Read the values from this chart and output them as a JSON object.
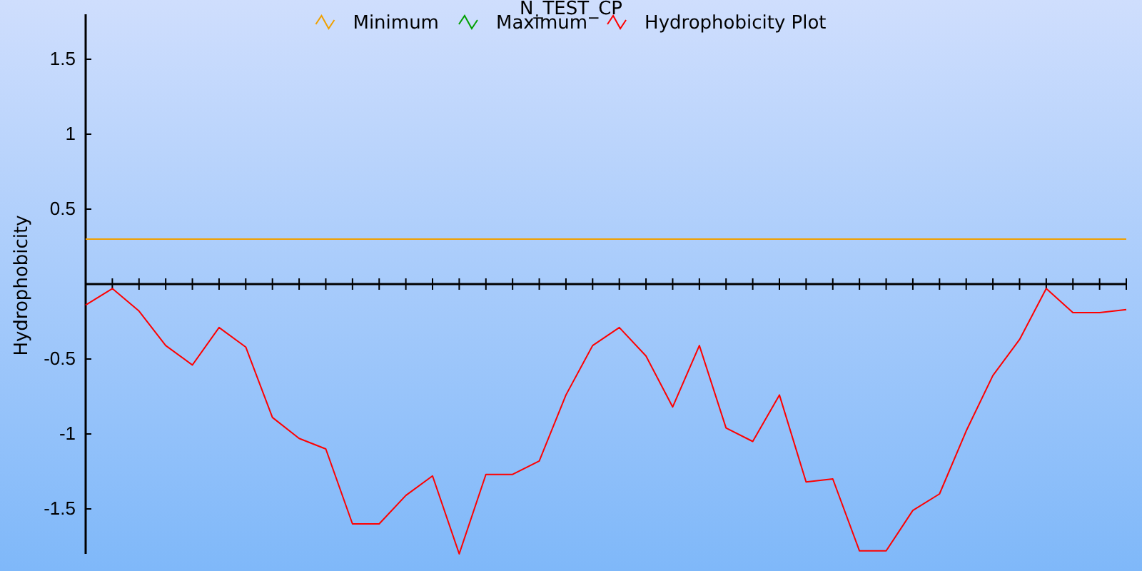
{
  "chart_data": {
    "type": "line",
    "title": "N_TEST_CP",
    "ylabel": "Hydrophobicity",
    "categories": [
      null,
      null,
      null,
      null,
      null,
      null,
      null,
      null,
      null,
      null,
      null,
      null,
      null,
      null,
      null,
      null,
      null,
      null,
      null,
      null,
      null,
      null,
      null,
      null,
      null,
      null,
      null,
      null,
      null,
      null,
      null,
      null,
      null,
      null,
      null,
      null,
      null,
      null,
      null,
      null
    ],
    "ylim": [
      -1.8,
      1.8
    ],
    "yticks": [
      -1.5,
      -1,
      -0.5,
      0.5,
      1,
      1.5
    ],
    "grid": false,
    "legend": "top",
    "marker": "none",
    "line_style": "solid",
    "series": [
      {
        "name": "Minimum",
        "color": "#f0a000",
        "values": [
          0.3,
          0.3,
          0.3,
          0.3,
          0.3,
          0.3,
          0.3,
          0.3,
          0.3,
          0.3,
          0.3,
          0.3,
          0.3,
          0.3,
          0.3,
          0.3,
          0.3,
          0.3,
          0.3,
          0.3,
          0.3,
          0.3,
          0.3,
          0.3,
          0.3,
          0.3,
          0.3,
          0.3,
          0.3,
          0.3,
          0.3,
          0.3,
          0.3,
          0.3,
          0.3,
          0.3,
          0.3,
          0.3,
          0.3,
          0.3
        ]
      },
      {
        "name": "Maximum",
        "color": "#00a000",
        "values": [
          null,
          null,
          null,
          null,
          null,
          null,
          null,
          null,
          null,
          null,
          null,
          null,
          null,
          null,
          null,
          null,
          null,
          null,
          null,
          null,
          null,
          null,
          null,
          null,
          null,
          null,
          null,
          null,
          null,
          null,
          null,
          null,
          null,
          null,
          null,
          null,
          null,
          null,
          null,
          null
        ]
      },
      {
        "name": "Hydrophobicity Plot",
        "color": "#ff0000",
        "values": [
          -0.14,
          -0.03,
          -0.18,
          -0.41,
          -0.54,
          -0.29,
          -0.42,
          -0.89,
          -1.03,
          -1.1,
          -1.6,
          -1.6,
          -1.41,
          -1.28,
          -1.8,
          -1.27,
          -1.27,
          -1.18,
          -0.74,
          -0.41,
          -0.29,
          -0.48,
          -0.82,
          -0.41,
          -0.96,
          -1.05,
          -0.74,
          -1.32,
          -1.3,
          -1.78,
          -1.78,
          -1.51,
          -1.4,
          -0.98,
          -0.61,
          -0.37,
          -0.03,
          -0.19,
          -0.19,
          -0.17
        ]
      }
    ]
  }
}
